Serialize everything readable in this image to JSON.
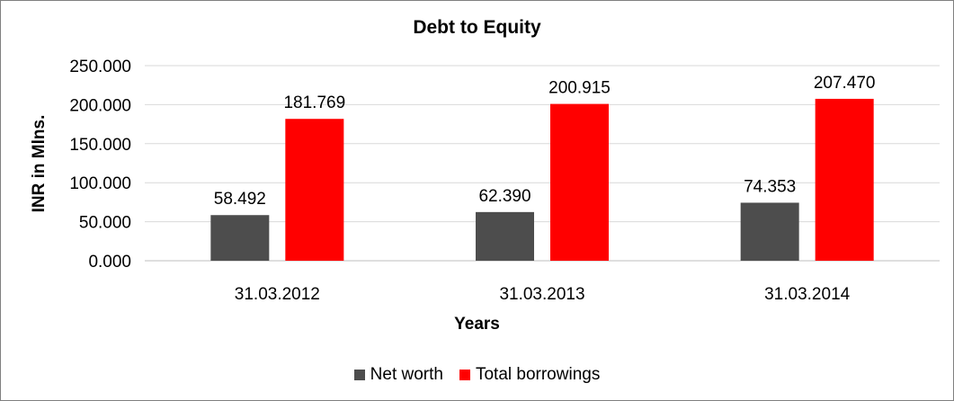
{
  "chart_data": {
    "type": "bar",
    "title": "Debt to Equity",
    "xlabel": "Years",
    "ylabel": "INR in Mlns.",
    "categories": [
      "31.03.2012",
      "31.03.2013",
      "31.03.2014"
    ],
    "series": [
      {
        "name": "Net worth",
        "values": [
          58.492,
          62.39,
          74.353
        ],
        "labels": [
          "58.492",
          "62.390",
          "74.353"
        ],
        "color": "#4d4d4d"
      },
      {
        "name": "Total borrowings",
        "values": [
          181.769,
          200.915,
          207.47
        ],
        "labels": [
          "181.769",
          "200.915",
          "207.470"
        ],
        "color": "#ff0000"
      }
    ],
    "ylim": [
      0,
      250
    ],
    "yticks": [
      "0.000",
      "50.000",
      "100.000",
      "150.000",
      "200.000",
      "250.000"
    ],
    "ytick_values": [
      0,
      50,
      100,
      150,
      200,
      250
    ],
    "grid": true,
    "legend_position": "bottom"
  }
}
